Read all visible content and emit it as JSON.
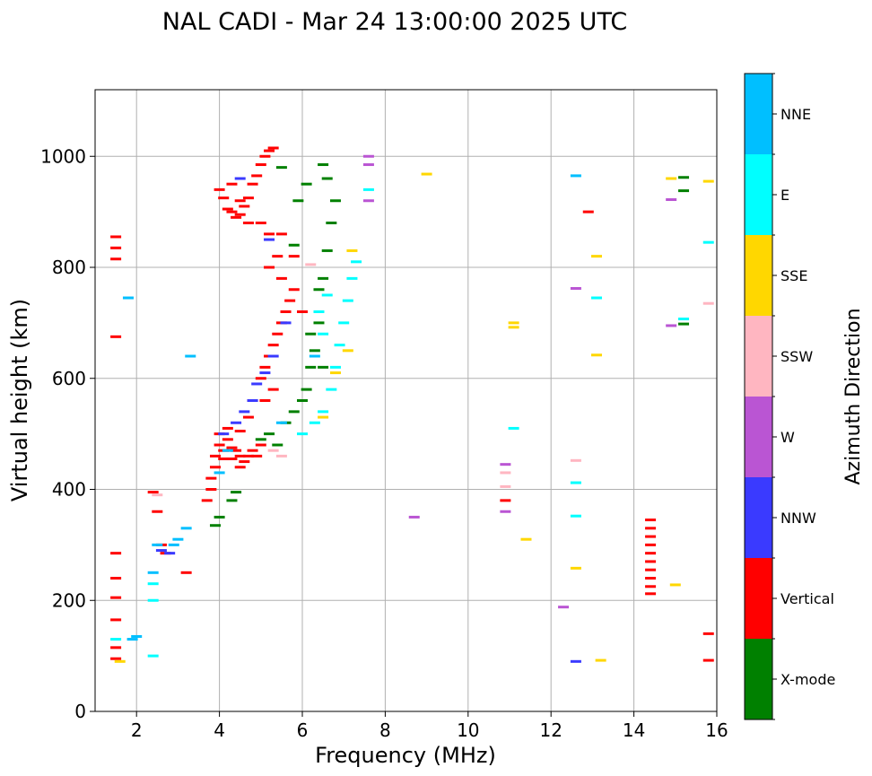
{
  "chart_data": {
    "type": "scatter",
    "title": "NAL CADI - Mar 24 13:00:00 2025 UTC",
    "xlabel": "Frequency (MHz)",
    "ylabel": "Virtual height (km)",
    "xlim": [
      1,
      16
    ],
    "ylim": [
      0,
      1120
    ],
    "xticks": [
      2,
      4,
      6,
      8,
      10,
      12,
      14,
      16
    ],
    "yticks": [
      0,
      200,
      400,
      600,
      800,
      1000
    ],
    "grid": true,
    "colorbar": {
      "title": "Azimuth Direction",
      "categories": [
        {
          "name": "X-mode",
          "color": "#008000"
        },
        {
          "name": "Vertical",
          "color": "#ff0000"
        },
        {
          "name": "NNW",
          "color": "#3a3aff"
        },
        {
          "name": "W",
          "color": "#ba55d3"
        },
        {
          "name": "SSW",
          "color": "#ffb6c1"
        },
        {
          "name": "SSE",
          "color": "#ffd700"
        },
        {
          "name": "E",
          "color": "#00ffff"
        },
        {
          "name": "NNE",
          "color": "#00bfff"
        }
      ]
    },
    "series": [
      {
        "name": "Vertical",
        "points": [
          [
            1.5,
            855
          ],
          [
            1.5,
            835
          ],
          [
            1.5,
            815
          ],
          [
            1.5,
            675
          ],
          [
            1.5,
            285
          ],
          [
            1.5,
            240
          ],
          [
            1.5,
            205
          ],
          [
            1.5,
            165
          ],
          [
            1.5,
            115
          ],
          [
            1.5,
            95
          ],
          [
            2.4,
            395
          ],
          [
            2.5,
            360
          ],
          [
            2.6,
            300
          ],
          [
            2.7,
            285
          ],
          [
            3.2,
            250
          ],
          [
            3.7,
            380
          ],
          [
            3.8,
            400
          ],
          [
            3.8,
            420
          ],
          [
            3.9,
            440
          ],
          [
            3.9,
            460
          ],
          [
            4.0,
            480
          ],
          [
            4.0,
            500
          ],
          [
            4.1,
            470
          ],
          [
            4.1,
            455
          ],
          [
            4.2,
            490
          ],
          [
            4.3,
            475
          ],
          [
            4.3,
            455
          ],
          [
            4.4,
            470
          ],
          [
            4.5,
            460
          ],
          [
            4.5,
            440
          ],
          [
            4.6,
            450
          ],
          [
            4.7,
            460
          ],
          [
            4.8,
            470
          ],
          [
            4.9,
            460
          ],
          [
            5.0,
            480
          ],
          [
            4.2,
            510
          ],
          [
            4.5,
            505
          ],
          [
            4.7,
            530
          ],
          [
            4.8,
            560
          ],
          [
            5.0,
            600
          ],
          [
            5.1,
            620
          ],
          [
            5.2,
            640
          ],
          [
            5.3,
            660
          ],
          [
            5.4,
            680
          ],
          [
            5.5,
            700
          ],
          [
            5.3,
            580
          ],
          [
            5.1,
            560
          ],
          [
            5.6,
            720
          ],
          [
            5.7,
            740
          ],
          [
            5.8,
            760
          ],
          [
            5.5,
            780
          ],
          [
            5.2,
            800
          ],
          [
            5.4,
            820
          ],
          [
            5.8,
            820
          ],
          [
            6.0,
            720
          ],
          [
            4.0,
            940
          ],
          [
            4.1,
            925
          ],
          [
            4.2,
            905
          ],
          [
            4.3,
            900
          ],
          [
            4.4,
            890
          ],
          [
            4.5,
            895
          ],
          [
            4.6,
            910
          ],
          [
            4.7,
            925
          ],
          [
            4.8,
            950
          ],
          [
            4.9,
            965
          ],
          [
            5.0,
            985
          ],
          [
            5.1,
            1000
          ],
          [
            5.2,
            1010
          ],
          [
            5.3,
            1015
          ],
          [
            4.3,
            950
          ],
          [
            4.5,
            920
          ],
          [
            4.7,
            880
          ],
          [
            5.0,
            880
          ],
          [
            5.2,
            860
          ],
          [
            5.5,
            860
          ],
          [
            10.9,
            380
          ],
          [
            12.9,
            900
          ],
          [
            14.4,
            345
          ],
          [
            14.4,
            330
          ],
          [
            14.4,
            315
          ],
          [
            14.4,
            300
          ],
          [
            14.4,
            285
          ],
          [
            14.4,
            270
          ],
          [
            14.4,
            255
          ],
          [
            14.4,
            240
          ],
          [
            14.4,
            225
          ],
          [
            14.4,
            212
          ],
          [
            15.8,
            140
          ],
          [
            15.8,
            92
          ]
        ]
      },
      {
        "name": "X-mode",
        "points": [
          [
            3.9,
            335
          ],
          [
            4.0,
            350
          ],
          [
            4.3,
            380
          ],
          [
            4.4,
            395
          ],
          [
            5.0,
            490
          ],
          [
            5.2,
            500
          ],
          [
            5.4,
            480
          ],
          [
            5.6,
            520
          ],
          [
            5.8,
            540
          ],
          [
            6.0,
            560
          ],
          [
            6.1,
            580
          ],
          [
            6.2,
            620
          ],
          [
            6.3,
            650
          ],
          [
            6.4,
            700
          ],
          [
            6.4,
            760
          ],
          [
            6.5,
            780
          ],
          [
            6.6,
            830
          ],
          [
            6.7,
            880
          ],
          [
            6.8,
            920
          ],
          [
            6.6,
            960
          ],
          [
            6.5,
            985
          ],
          [
            6.1,
            950
          ],
          [
            5.9,
            920
          ],
          [
            5.5,
            980
          ],
          [
            5.8,
            840
          ],
          [
            6.2,
            680
          ],
          [
            6.5,
            620
          ],
          [
            15.2,
            962
          ],
          [
            15.2,
            938
          ],
          [
            15.2,
            698
          ]
        ]
      },
      {
        "name": "NNW",
        "points": [
          [
            2.6,
            290
          ],
          [
            2.8,
            285
          ],
          [
            4.1,
            500
          ],
          [
            4.4,
            520
          ],
          [
            4.6,
            540
          ],
          [
            4.8,
            560
          ],
          [
            4.9,
            590
          ],
          [
            5.1,
            610
          ],
          [
            5.3,
            640
          ],
          [
            5.6,
            700
          ],
          [
            5.2,
            850
          ],
          [
            4.5,
            960
          ],
          [
            12.6,
            90
          ]
        ]
      },
      {
        "name": "W",
        "points": [
          [
            7.6,
            1000
          ],
          [
            7.6,
            985
          ],
          [
            7.6,
            920
          ],
          [
            8.7,
            350
          ],
          [
            10.9,
            445
          ],
          [
            10.9,
            360
          ],
          [
            12.3,
            188
          ],
          [
            12.6,
            762
          ],
          [
            14.9,
            922
          ],
          [
            14.9,
            695
          ]
        ]
      },
      {
        "name": "SSW",
        "points": [
          [
            2.5,
            390
          ],
          [
            5.3,
            470
          ],
          [
            5.5,
            460
          ],
          [
            6.2,
            805
          ],
          [
            10.9,
            430
          ],
          [
            10.9,
            405
          ],
          [
            12.6,
            452
          ],
          [
            15.8,
            735
          ]
        ]
      },
      {
        "name": "SSE",
        "points": [
          [
            1.6,
            90
          ],
          [
            6.5,
            530
          ],
          [
            6.8,
            610
          ],
          [
            7.1,
            650
          ],
          [
            7.2,
            830
          ],
          [
            9.0,
            968
          ],
          [
            11.1,
            700
          ],
          [
            11.1,
            692
          ],
          [
            11.4,
            310
          ],
          [
            12.6,
            258
          ],
          [
            13.1,
            642
          ],
          [
            13.1,
            820
          ],
          [
            13.2,
            92
          ],
          [
            14.9,
            960
          ],
          [
            15.0,
            228
          ],
          [
            15.8,
            955
          ]
        ]
      },
      {
        "name": "E",
        "points": [
          [
            1.5,
            130
          ],
          [
            2.4,
            230
          ],
          [
            2.4,
            200
          ],
          [
            6.0,
            500
          ],
          [
            6.3,
            520
          ],
          [
            6.5,
            540
          ],
          [
            6.7,
            580
          ],
          [
            6.8,
            620
          ],
          [
            6.9,
            660
          ],
          [
            7.0,
            700
          ],
          [
            7.1,
            740
          ],
          [
            7.2,
            780
          ],
          [
            7.3,
            810
          ],
          [
            6.6,
            750
          ],
          [
            6.4,
            720
          ],
          [
            6.5,
            680
          ],
          [
            7.6,
            940
          ],
          [
            11.1,
            510
          ],
          [
            12.6,
            412
          ],
          [
            12.6,
            352
          ],
          [
            13.1,
            745
          ],
          [
            15.2,
            707
          ],
          [
            15.8,
            845
          ],
          [
            2.4,
            100
          ]
        ]
      },
      {
        "name": "NNE",
        "points": [
          [
            1.8,
            745
          ],
          [
            1.9,
            130
          ],
          [
            2.0,
            135
          ],
          [
            2.4,
            250
          ],
          [
            2.5,
            300
          ],
          [
            2.9,
            300
          ],
          [
            3.0,
            310
          ],
          [
            3.2,
            330
          ],
          [
            3.3,
            640
          ],
          [
            4.0,
            430
          ],
          [
            4.2,
            470
          ],
          [
            5.5,
            520
          ],
          [
            6.3,
            640
          ],
          [
            12.6,
            965
          ]
        ]
      }
    ]
  }
}
